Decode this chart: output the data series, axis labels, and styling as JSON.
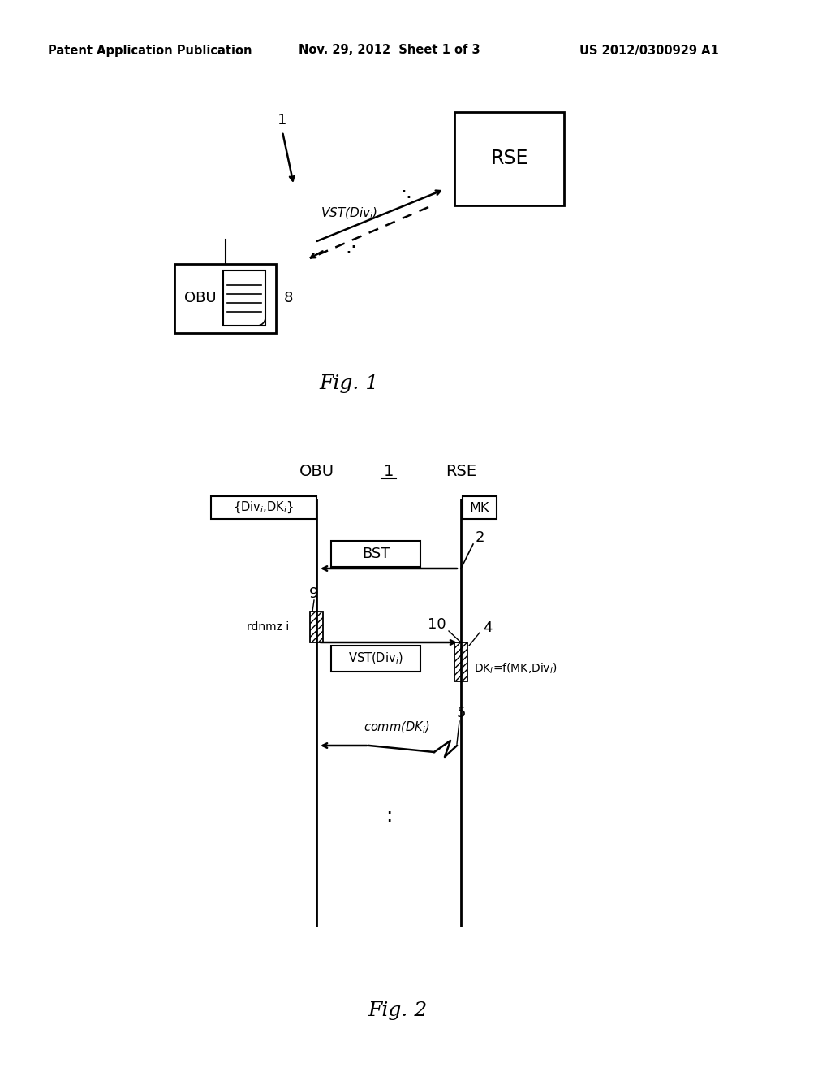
{
  "header_left": "Patent Application Publication",
  "header_center": "Nov. 29, 2012  Sheet 1 of 3",
  "header_right": "US 2012/0300929 A1",
  "fig1_label": "Fig. 1",
  "fig2_label": "Fig. 2",
  "background_color": "#ffffff",
  "line_color": "#000000",
  "text_color": "#000000"
}
